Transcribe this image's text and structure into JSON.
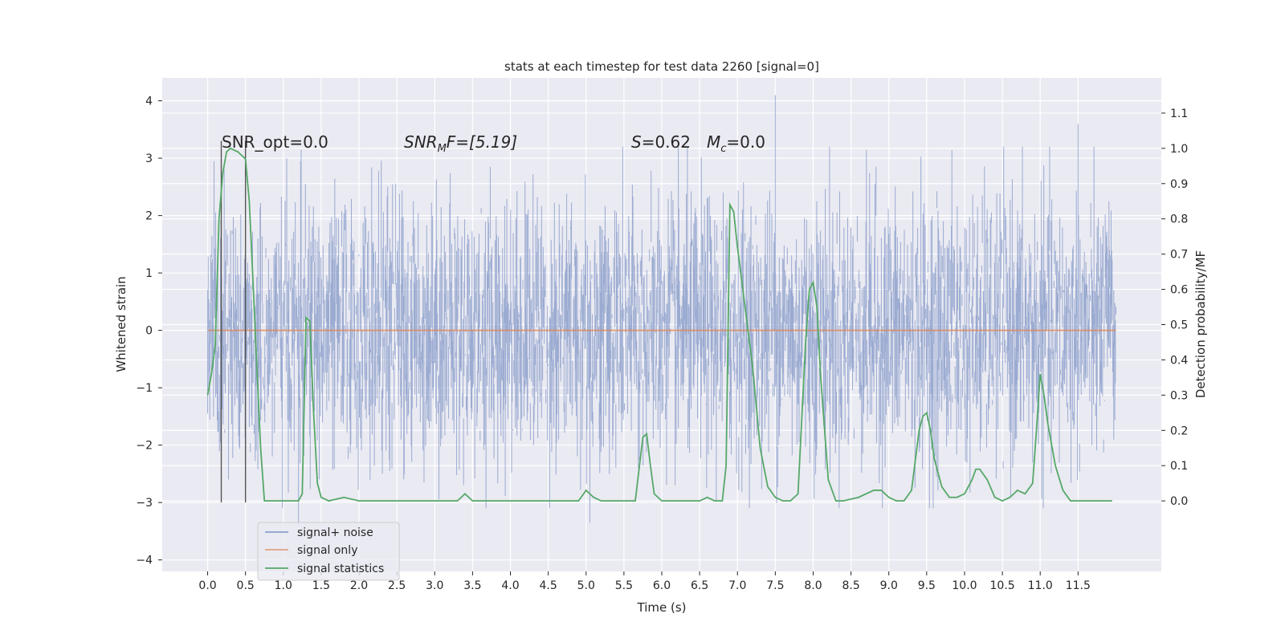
{
  "chart_data": {
    "type": "line",
    "title": "stats at each timestep for test data 2260 [signal=0]",
    "xlabel": "Time (s)",
    "ylabel_left": "Whitened strain",
    "ylabel_right": "Detection probability/MF",
    "xlim": [
      -0.6,
      12.6
    ],
    "ylim_left": [
      -4.2,
      4.4
    ],
    "ylim_right": [
      -0.2,
      1.2
    ],
    "x_ticks": [
      "0.0",
      "0.5",
      "1.0",
      "1.5",
      "2.0",
      "2.5",
      "3.0",
      "3.5",
      "4.0",
      "4.5",
      "5.0",
      "5.5",
      "6.0",
      "6.5",
      "7.0",
      "7.5",
      "8.0",
      "8.5",
      "9.0",
      "9.5",
      "10.0",
      "10.5",
      "11.0",
      "11.5"
    ],
    "y_left_ticks": [
      "4",
      "3",
      "2",
      "1",
      "0",
      "−1",
      "−2",
      "−3",
      "−4"
    ],
    "y_right_ticks": [
      "1.1",
      "1.0",
      "0.9",
      "0.8",
      "0.7",
      "0.6",
      "0.5",
      "0.4",
      "0.3",
      "0.2",
      "0.1",
      "0.0"
    ],
    "grid": true,
    "legend_position": "lower-left",
    "annotations": {
      "snr_opt": "SNR_opt=0.0",
      "snr_mf_symbol": "SNR",
      "snr_mf_sub": "M",
      "snr_mf_rest": "F=[5.19]",
      "s_symbol": "S",
      "s_rest": "=0.62",
      "mc_symbol": "M",
      "mc_sub": "c",
      "mc_rest": "=0.0"
    },
    "vertical_markers_x": [
      0.18,
      0.5
    ],
    "series": [
      {
        "name": "signal+ noise",
        "color": "#8da0cb",
        "axis": "left",
        "style": "dense noise band",
        "x_range": [
          0.0,
          12.0
        ],
        "y_range": [
          -3.4,
          4.1
        ],
        "notable_peaks": [
          {
            "x": 7.5,
            "y": 4.1
          },
          {
            "x": 11.5,
            "y": 3.6
          },
          {
            "x": 1.2,
            "y": -3.4
          },
          {
            "x": 5.05,
            "y": -3.35
          }
        ]
      },
      {
        "name": "signal only",
        "color": "#dd8452",
        "axis": "left",
        "x": [
          0.0,
          12.0
        ],
        "y": [
          0.0,
          0.0
        ]
      },
      {
        "name": "signal statistics",
        "color": "#55a868",
        "axis": "right",
        "x": [
          0.0,
          0.05,
          0.1,
          0.15,
          0.2,
          0.25,
          0.3,
          0.4,
          0.5,
          0.55,
          0.6,
          0.65,
          0.7,
          0.75,
          0.8,
          1.0,
          1.2,
          1.25,
          1.3,
          1.35,
          1.4,
          1.45,
          1.5,
          1.6,
          1.8,
          2.0,
          2.5,
          3.0,
          3.3,
          3.4,
          3.5,
          4.0,
          4.3,
          4.8,
          4.9,
          5.0,
          5.1,
          5.2,
          5.5,
          5.65,
          5.75,
          5.8,
          5.85,
          5.9,
          6.0,
          6.3,
          6.5,
          6.6,
          6.7,
          6.8,
          6.85,
          6.9,
          6.95,
          7.0,
          7.1,
          7.2,
          7.3,
          7.4,
          7.5,
          7.6,
          7.7,
          7.8,
          7.9,
          7.95,
          8.0,
          8.05,
          8.1,
          8.2,
          8.3,
          8.4,
          8.6,
          8.8,
          8.9,
          9.0,
          9.1,
          9.2,
          9.3,
          9.4,
          9.45,
          9.5,
          9.55,
          9.6,
          9.7,
          9.8,
          9.9,
          10.0,
          10.1,
          10.15,
          10.2,
          10.3,
          10.4,
          10.5,
          10.6,
          10.7,
          10.8,
          10.9,
          10.95,
          11.0,
          11.05,
          11.1,
          11.2,
          11.3,
          11.4,
          11.6,
          11.8,
          11.95
        ],
        "y": [
          0.3,
          0.36,
          0.44,
          0.8,
          0.93,
          0.99,
          1.0,
          0.99,
          0.97,
          0.85,
          0.62,
          0.38,
          0.15,
          0.0,
          0.0,
          0.0,
          0.0,
          0.02,
          0.52,
          0.51,
          0.25,
          0.05,
          0.01,
          0.0,
          0.01,
          0.0,
          0.0,
          0.0,
          0.0,
          0.02,
          0.0,
          0.0,
          0.0,
          0.0,
          0.0,
          0.03,
          0.01,
          0.0,
          0.0,
          0.0,
          0.18,
          0.19,
          0.1,
          0.02,
          0.0,
          0.0,
          0.0,
          0.01,
          0.0,
          0.0,
          0.1,
          0.84,
          0.82,
          0.72,
          0.55,
          0.38,
          0.15,
          0.04,
          0.01,
          0.0,
          0.0,
          0.02,
          0.45,
          0.6,
          0.62,
          0.55,
          0.35,
          0.06,
          0.0,
          0.0,
          0.01,
          0.03,
          0.03,
          0.01,
          0.0,
          0.0,
          0.03,
          0.2,
          0.24,
          0.25,
          0.2,
          0.12,
          0.04,
          0.01,
          0.01,
          0.02,
          0.06,
          0.09,
          0.09,
          0.06,
          0.01,
          0.0,
          0.01,
          0.03,
          0.02,
          0.05,
          0.2,
          0.36,
          0.3,
          0.22,
          0.1,
          0.03,
          0.0,
          0.0,
          0.0,
          0.0
        ]
      }
    ]
  }
}
